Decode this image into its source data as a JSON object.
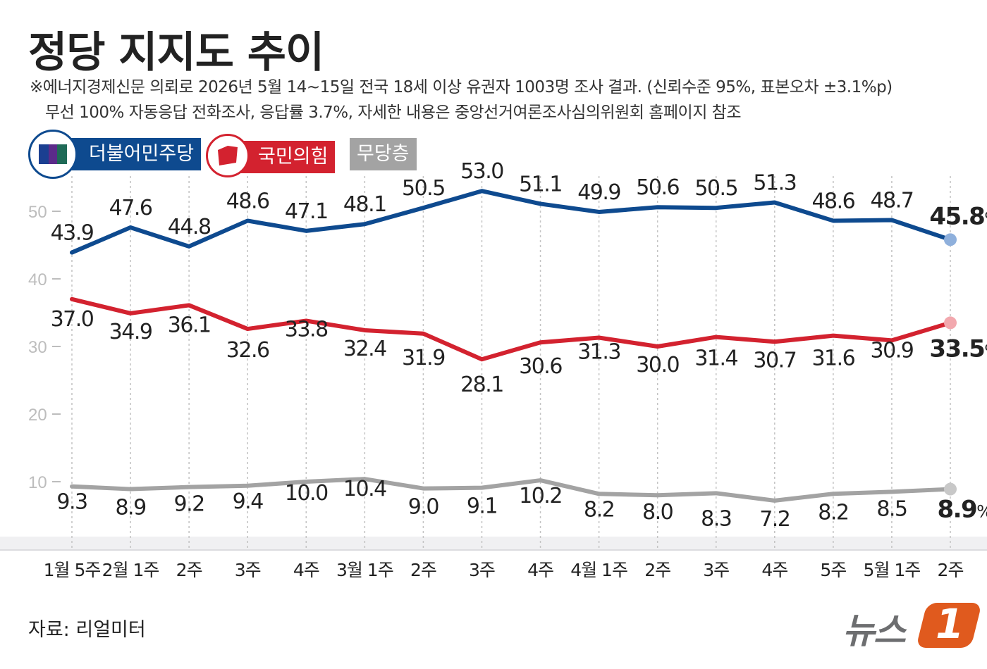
{
  "title": "정당 지지도 추이",
  "note": {
    "line1": "※에너지경제신문 의뢰로 2026년 5월 14~15일 전국 18세 이상 유권자 1003명 조사 결과. (신뢰수준 95%, 표본오차 ±3.1%p)",
    "line2": "무선 100% 자동응답 전화조사, 응답률 3.7%, 자세한 내용은 중앙선거여론조사심의위원회 홈페이지 참조"
  },
  "legend": {
    "dem": "더불어민주당",
    "ppp": "국민의힘",
    "none": "무당층"
  },
  "source": "자료: 리얼미터",
  "logo": {
    "text": "뉴스",
    "badge": "1"
  },
  "colors": {
    "dem": "#0e4a8f",
    "ppp": "#d3222f",
    "none": "#a3a3a3",
    "dem_end": "#8fb0dc",
    "ppp_end": "#f2a8ae",
    "none_end": "#c8c8c8"
  },
  "chart_data": {
    "type": "line",
    "categories": [
      "1월 5주",
      "2월 1주",
      "2주",
      "3주",
      "4주",
      "3월 1주",
      "2주",
      "3주",
      "4주",
      "4월 1주",
      "2주",
      "3주",
      "4주",
      "5주",
      "5월 1주",
      "2주"
    ],
    "ylim": [
      0,
      55
    ],
    "yticks": [
      10,
      20,
      30,
      40,
      50
    ],
    "grid": false,
    "legend_position": "top-left",
    "series": [
      {
        "name": "더불어민주당",
        "key": "dem",
        "values": [
          43.9,
          47.6,
          44.8,
          48.6,
          47.1,
          48.1,
          50.5,
          53.0,
          51.1,
          49.9,
          50.6,
          50.5,
          51.3,
          48.6,
          48.7,
          45.8
        ],
        "labels": [
          "43.9",
          "47.6",
          "44.8",
          "48.6",
          "47.1",
          "48.1",
          "50.5",
          "53.0",
          "51.1",
          "49.9",
          "50.6",
          "50.5",
          "51.3",
          "48.6",
          "48.7",
          "45.8"
        ],
        "last_suffix": "%"
      },
      {
        "name": "국민의힘",
        "key": "ppp",
        "values": [
          37.0,
          34.9,
          36.1,
          32.6,
          33.8,
          32.4,
          31.9,
          28.1,
          30.6,
          31.3,
          30.0,
          31.4,
          30.7,
          31.6,
          30.9,
          33.5
        ],
        "labels": [
          "37.0",
          "34.9",
          "36.1",
          "32.6",
          "33.8",
          "32.4",
          "31.9",
          "28.1",
          "30.6",
          "31.3",
          "30.0",
          "31.4",
          "30.7",
          "31.6",
          "30.9",
          "33.5"
        ],
        "last_suffix": "%"
      },
      {
        "name": "무당층",
        "key": "none",
        "values": [
          9.3,
          8.9,
          9.2,
          9.4,
          10.0,
          10.4,
          9.0,
          9.1,
          10.2,
          8.2,
          8.0,
          8.3,
          7.2,
          8.2,
          8.5,
          8.9
        ],
        "labels": [
          "9.3",
          "8.9",
          "9.2",
          "9.4",
          "10.0",
          "10.4",
          "9.0",
          "9.1",
          "10.2",
          "8.2",
          "8.0",
          "8.3",
          "7.2",
          "8.2",
          "8.5",
          "8.9"
        ],
        "last_suffix": "%"
      }
    ]
  }
}
